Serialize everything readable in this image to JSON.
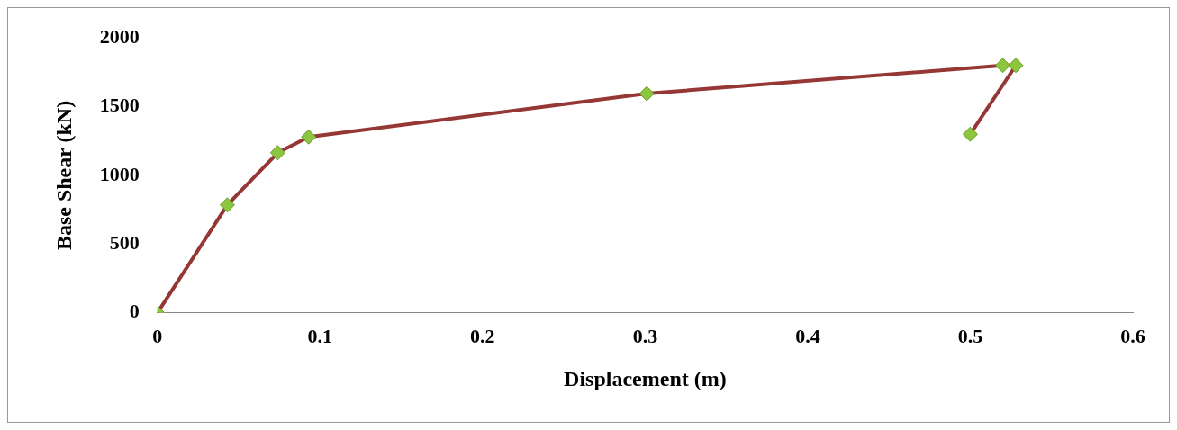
{
  "chart_data": {
    "type": "line",
    "xlabel": "Displacement (m)",
    "ylabel": "Base Shear (kN)",
    "series": [
      {
        "color": "#953735",
        "x": [
          0,
          0.043,
          0.074,
          0.093,
          0.301,
          0.52,
          0.528,
          0.5
        ],
        "values": [
          0,
          785,
          1165,
          1280,
          1595,
          1800,
          1800,
          1300
        ],
        "colors": [
          "#8cc63f",
          "#8cc63f",
          "#8cc63f",
          "#8cc63f",
          "#8cc63f",
          "#8cc63f",
          "#8cc63f",
          "#8cc63f"
        ]
      }
    ],
    "xlim": [
      0,
      0.6
    ],
    "xticks": [
      0,
      0.1,
      0.2,
      0.3,
      0.4,
      0.5,
      0.6
    ],
    "ylim": [
      0,
      2000
    ],
    "yticks": [
      0,
      500,
      1000,
      1500,
      2000
    ],
    "grid": false,
    "legend": false,
    "marker": "diamond",
    "line_style": "solid"
  }
}
